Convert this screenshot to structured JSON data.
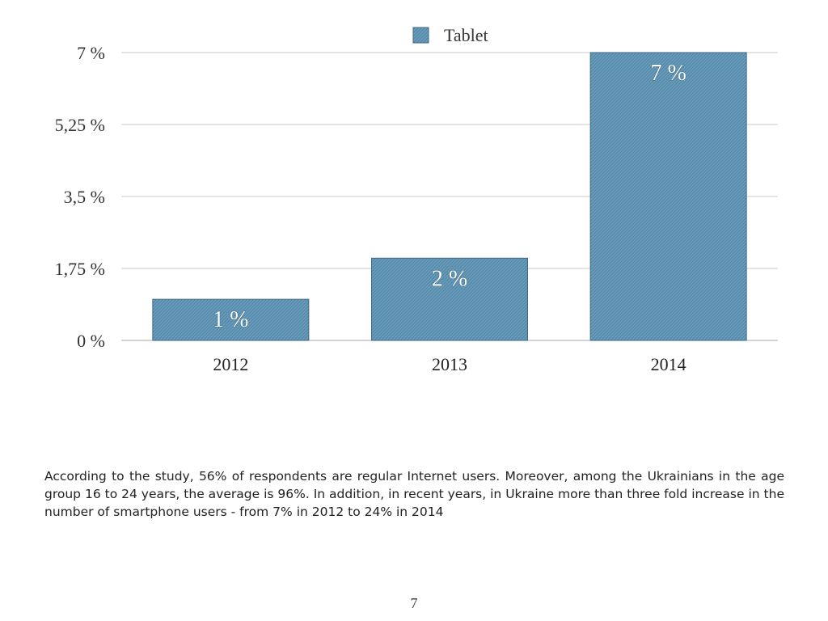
{
  "chart_data": {
    "type": "bar",
    "categories": [
      "2012",
      "2013",
      "2014"
    ],
    "series": [
      {
        "name": "Tablet",
        "values": [
          1,
          2,
          7
        ]
      }
    ],
    "data_labels": [
      "1 %",
      "2 %",
      "7 %"
    ],
    "yticks": [
      0,
      1.75,
      3.5,
      5.25,
      7
    ],
    "ytick_labels": [
      "0 %",
      "1,75 %",
      "3,5 %",
      "5,25 %",
      "7 %"
    ],
    "ylim": [
      0,
      7
    ],
    "grid": true,
    "legend": "top-center",
    "bar_color": "#5b8fb0",
    "bar_edge_color": "#3d6a85"
  },
  "caption": "According to the study, 56% of respondents are regular Internet users. Moreover, among the Ukrainians in the age group 16 to 24 years, the average is 96%. In addition, in recent years, in Ukraine more than three fold increase in the number of smartphone users - from 7% in 2012 to 24% in 2014",
  "page_number": "7"
}
